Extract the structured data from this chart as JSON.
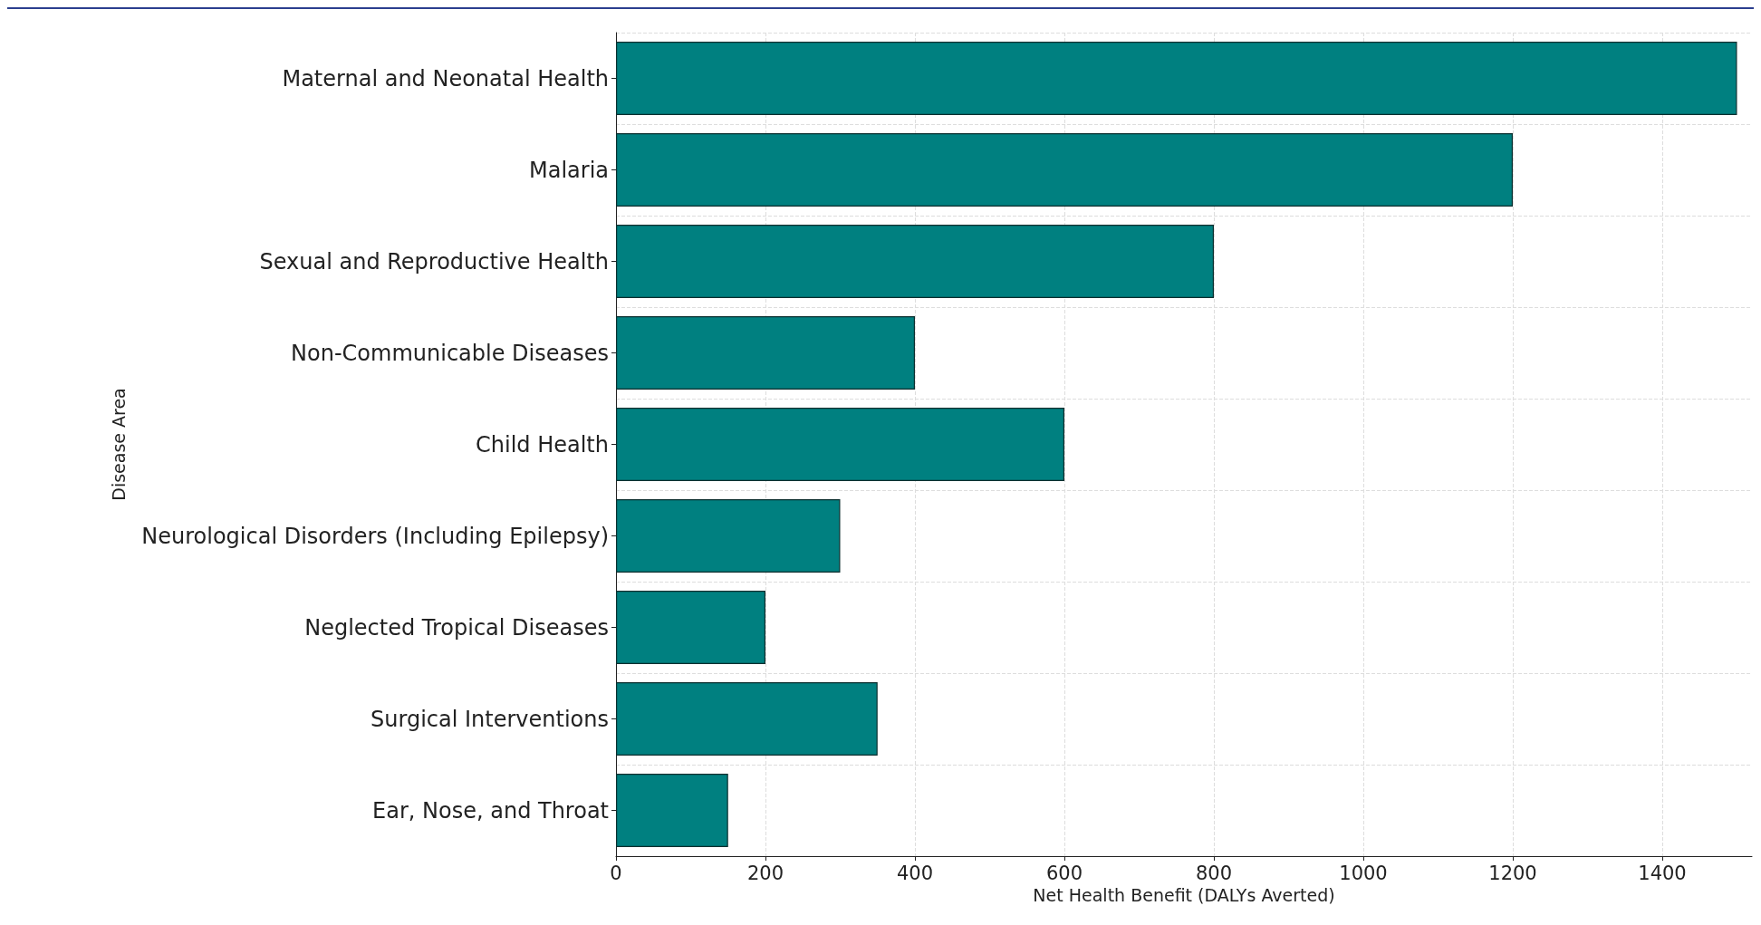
{
  "chart_data": {
    "type": "bar",
    "orientation": "horizontal",
    "xlabel": "Net Health Benefit (DALYs Averted)",
    "ylabel": "Disease Area",
    "categories": [
      "Maternal and Neonatal Health",
      "Malaria",
      "Sexual and Reproductive Health",
      "Non-Communicable Diseases",
      "Child Health",
      "Neurological Disorders (Including Epilepsy)",
      "Neglected Tropical Diseases",
      "Surgical Interventions",
      "Ear, Nose, and Throat"
    ],
    "values": [
      1500,
      1200,
      800,
      400,
      600,
      300,
      200,
      350,
      150
    ],
    "color": "#008080",
    "xlim": [
      0,
      1520
    ],
    "xticks": [
      0,
      200,
      400,
      600,
      800,
      1000,
      1200,
      1400
    ],
    "grid": true
  }
}
